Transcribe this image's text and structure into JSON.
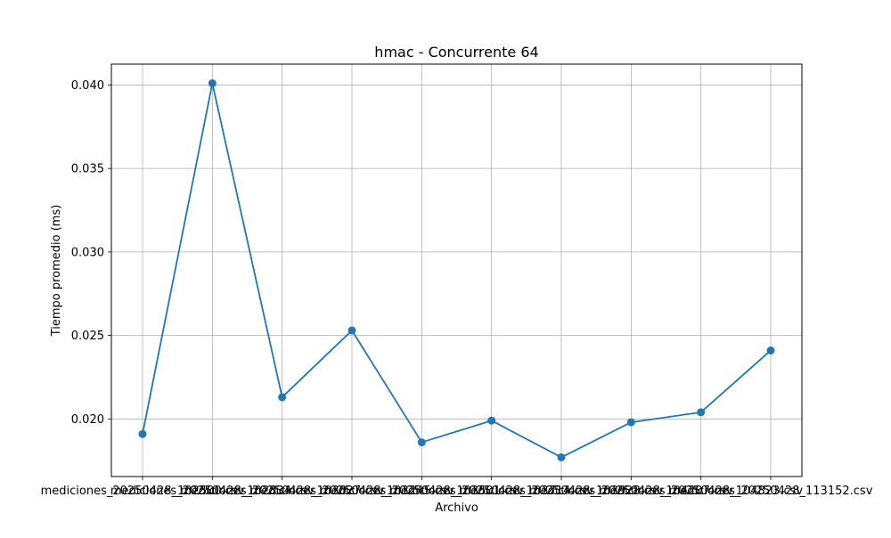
{
  "chart_data": {
    "type": "line",
    "title": "hmac - Concurrente 64",
    "xlabel": "Archivo",
    "ylabel": "Tiempo promedio (ms)",
    "categories": [
      "mediciones_20250428_102500.csv",
      "mediciones_20250428_102834.csv",
      "mediciones_20250428_103027.csv",
      "mediciones_20250428_103245.csv",
      "mediciones_20250428_103501.csv",
      "mediciones_20250428_103714.csv",
      "mediciones_20250428_103928.csv",
      "mediciones_20250428_104207.csv",
      "mediciones_20250428_104823.csv",
      "mediciones_20250428_113152.csv"
    ],
    "series": [
      {
        "values": [
          0.0191,
          0.0401,
          0.0213,
          0.0253,
          0.0186,
          0.0199,
          0.0177,
          0.0198,
          0.0204,
          0.0241
        ]
      }
    ],
    "ylim": [
      0.01655,
      0.04125
    ],
    "yticks": [
      0.02,
      0.025,
      0.03,
      0.035,
      0.04
    ],
    "ytick_labels": [
      "0.020",
      "0.025",
      "0.030",
      "0.035",
      "0.040"
    ],
    "grid": true,
    "legend": "none",
    "line_color": "#1f77b4"
  }
}
